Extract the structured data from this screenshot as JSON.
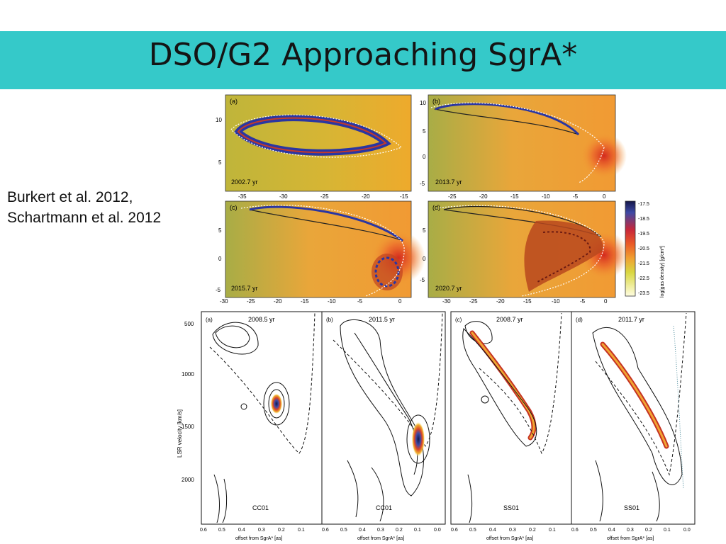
{
  "slide": {
    "title": "DSO/G2 Approaching SgrA*",
    "citation_lines": [
      "Burkert et al. 2012,",
      "Schartmann et al. 2012"
    ]
  },
  "colors": {
    "title_bar": "#35c9c9",
    "title_text": "#141414",
    "density_low": "#fffde0",
    "density_high": "#15174a",
    "orbit_line": "#ffffff",
    "contour": "#000000"
  },
  "sim_figure": {
    "panels": [
      {
        "tag": "(a)",
        "epoch": "2002.7 yr",
        "x_ticks": [
          "-35",
          "-30",
          "-25",
          "-20",
          "-15"
        ],
        "y_ticks": [
          "10",
          "5"
        ]
      },
      {
        "tag": "(b)",
        "epoch": "2013.7 yr",
        "x_ticks": [
          "-25",
          "-20",
          "-15",
          "-10",
          "-5",
          "0"
        ],
        "y_ticks": [
          "10",
          "5",
          "0",
          "-5"
        ]
      },
      {
        "tag": "(c)",
        "epoch": "2015.7 yr",
        "x_ticks": [
          "-30",
          "-25",
          "-20",
          "-15",
          "-10",
          "-5",
          "0"
        ],
        "y_ticks": [
          "5",
          "0",
          "-5"
        ]
      },
      {
        "tag": "(d)",
        "epoch": "2020.7 yr",
        "x_ticks": [
          "-30",
          "-25",
          "-20",
          "-15",
          "-10",
          "-5",
          "0"
        ],
        "y_ticks": [
          "5",
          "0",
          "-5"
        ]
      }
    ],
    "colorbar": {
      "label": "log(gas density) [g/cm³]",
      "ticks": [
        "-17.5",
        "-18.5",
        "-19.5",
        "-20.5",
        "-21.5",
        "-22.5",
        "-23.5"
      ]
    }
  },
  "pv_figure": {
    "y_label": "LSR velocity [km/s]",
    "y_ticks": [
      "500",
      "1000",
      "1500",
      "2000"
    ],
    "x_label": "offset from SgrA* [as]",
    "panels": [
      {
        "tag": "(a)",
        "epoch": "2008.5 yr",
        "model": "CC01",
        "x_ticks": [
          "0.6",
          "0.5",
          "0.4",
          "0.3",
          "0.2",
          "0.1"
        ]
      },
      {
        "tag": "(b)",
        "epoch": "2011.5 yr",
        "model": "CC01",
        "x_ticks": [
          "0.6",
          "0.5",
          "0.4",
          "0.3",
          "0.2",
          "0.1",
          "0.0"
        ]
      },
      {
        "tag": "(c)",
        "epoch": "2008.7 yr",
        "model": "SS01",
        "x_ticks": [
          "0.6",
          "0.5",
          "0.4",
          "0.3",
          "0.2",
          "0.1"
        ]
      },
      {
        "tag": "(d)",
        "epoch": "2011.7 yr",
        "model": "SS01",
        "x_ticks": [
          "0.6",
          "0.5",
          "0.4",
          "0.3",
          "0.2",
          "0.1",
          "0.0"
        ]
      }
    ]
  }
}
